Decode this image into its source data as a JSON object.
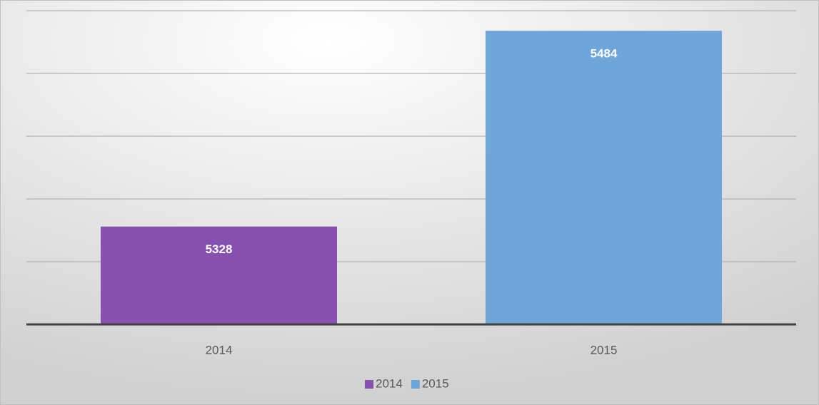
{
  "chart_data": {
    "type": "bar",
    "categories": [
      "2014",
      "2015"
    ],
    "values": [
      5328,
      5484
    ],
    "colors": [
      "#8650ae",
      "#6fa5d9"
    ],
    "ylim": [
      5250,
      5500
    ],
    "yticks": [
      5250,
      5300,
      5350,
      5400,
      5450,
      5500
    ],
    "grid": true,
    "legend": "bottom"
  }
}
